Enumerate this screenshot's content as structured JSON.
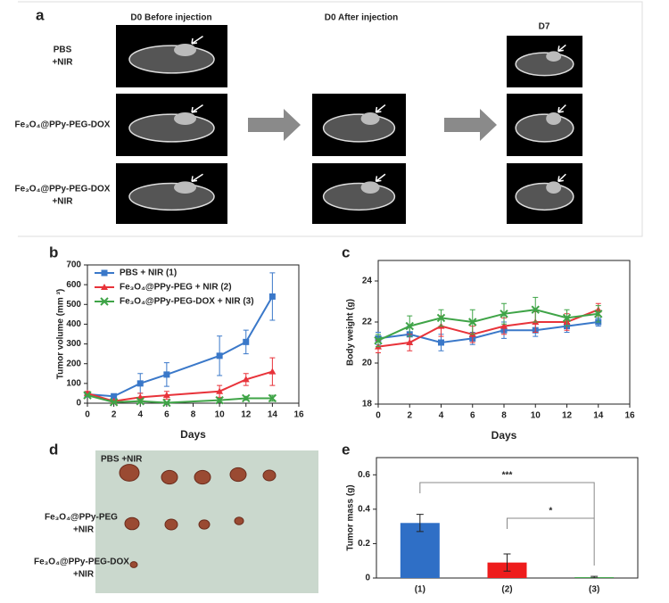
{
  "panel_a": {
    "label": "a",
    "columns": [
      "D0 Before injection",
      "D0 After injection",
      "D7"
    ],
    "rows": [
      [
        "PBS",
        "+NIR"
      ],
      [
        "Fe₃O₄@PPy-PEG-DOX"
      ],
      [
        "Fe₃O₄@PPy-PEG-DOX",
        "+NIR"
      ]
    ]
  },
  "panel_d": {
    "label": "d",
    "rows": [
      [
        "PBS +NIR"
      ],
      [
        "Fe₃O₄@PPy-PEG",
        "+NIR"
      ],
      [
        "Fe₃O₄@PPy-PEG-DOX",
        "+NIR"
      ]
    ]
  },
  "chart_data": [
    {
      "type": "line",
      "label": "b",
      "xlabel": "Days",
      "ylabel": "Tumor volume (mm ³)",
      "xlim": [
        0,
        16
      ],
      "xticks": [
        0,
        2,
        4,
        6,
        8,
        10,
        12,
        14,
        16
      ],
      "ylim": [
        0,
        700
      ],
      "yticks": [
        0,
        100,
        200,
        300,
        400,
        500,
        600,
        700
      ],
      "legend": "upper left",
      "x": [
        0,
        2,
        4,
        6,
        10,
        12,
        14
      ],
      "series": [
        {
          "name": "PBS + NIR  (1)",
          "color": "#3a78c9",
          "marker": "square",
          "values": [
            45,
            35,
            100,
            145,
            240,
            310,
            540
          ],
          "errors": [
            10,
            10,
            50,
            60,
            100,
            60,
            120
          ]
        },
        {
          "name": "Fe₃O₄@PPy-PEG + NIR  (2)",
          "color": "#e8333a",
          "marker": "triangle",
          "values": [
            50,
            10,
            30,
            40,
            60,
            120,
            160
          ],
          "errors": [
            10,
            5,
            20,
            20,
            30,
            30,
            70
          ]
        },
        {
          "name": "Fe₃O₄@PPy-PEG-DOX + NIR  (3)",
          "color": "#3fa447",
          "marker": "x",
          "values": [
            40,
            5,
            10,
            2,
            15,
            25,
            25
          ],
          "errors": [
            5,
            5,
            10,
            5,
            10,
            10,
            15
          ]
        }
      ]
    },
    {
      "type": "line",
      "label": "c",
      "xlabel": "Days",
      "ylabel": "Body weight (g)",
      "xlim": [
        0,
        16
      ],
      "xticks": [
        0,
        2,
        4,
        6,
        8,
        10,
        12,
        14,
        16
      ],
      "ylim": [
        18,
        25
      ],
      "yticks": [
        18,
        20,
        22,
        24
      ],
      "x": [
        0,
        2,
        4,
        6,
        8,
        10,
        12,
        14
      ],
      "series": [
        {
          "color": "#3a78c9",
          "marker": "square",
          "values": [
            21.2,
            21.4,
            21.0,
            21.2,
            21.6,
            21.6,
            21.8,
            22.0
          ],
          "errors": [
            0.3,
            0.4,
            0.4,
            0.3,
            0.4,
            0.3,
            0.3,
            0.2
          ]
        },
        {
          "color": "#e8333a",
          "marker": "triangle",
          "values": [
            20.8,
            21.0,
            21.8,
            21.4,
            21.8,
            22.0,
            22.0,
            22.6
          ],
          "errors": [
            0.3,
            0.4,
            0.5,
            0.4,
            0.4,
            0.5,
            0.4,
            0.3
          ]
        },
        {
          "color": "#3fa447",
          "marker": "x",
          "values": [
            21.1,
            21.8,
            22.2,
            22.0,
            22.4,
            22.6,
            22.2,
            22.4
          ],
          "errors": [
            0.3,
            0.5,
            0.4,
            0.6,
            0.5,
            0.6,
            0.4,
            0.4
          ]
        }
      ]
    },
    {
      "type": "bar",
      "label": "e",
      "ylabel": "Tumor mass (g)",
      "categories": [
        "(1)",
        "(2)",
        "(3)"
      ],
      "values": [
        0.32,
        0.09,
        0.005
      ],
      "errors": [
        0.05,
        0.05,
        0.005
      ],
      "colors": [
        "#2f6fc6",
        "#ee1c1c",
        "#3fa447"
      ],
      "ylim": [
        0,
        0.7
      ],
      "yticks": [
        0,
        0.2,
        0.4,
        0.6
      ],
      "annotations": [
        "***",
        "*"
      ]
    }
  ]
}
